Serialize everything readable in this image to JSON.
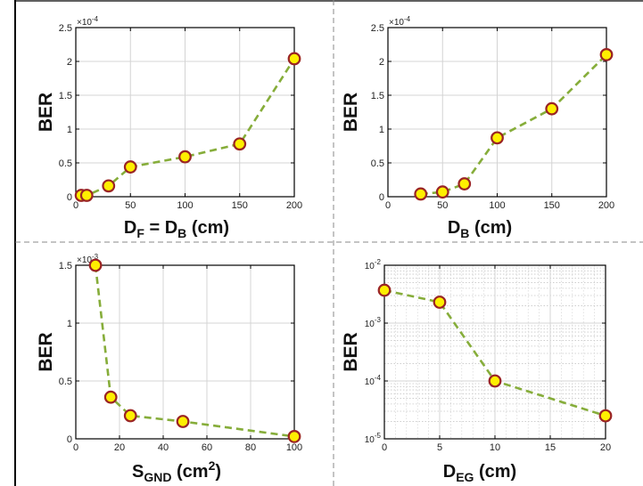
{
  "style": {
    "line_color": "#86ad3a",
    "marker_fill": "#ffef00",
    "marker_edge": "#9a2424",
    "grid_color": "#d4d4d4",
    "divider_color": "#888888"
  },
  "chart_data": [
    {
      "type": "line",
      "ylabel": "BER",
      "xlabel": {
        "main": "D",
        "sub": "F",
        "mid": " = D",
        "sub2": "B",
        "tail": " (cm)"
      },
      "exponent": {
        "base": "×10",
        "power": "-4"
      },
      "x": [
        5,
        10,
        30,
        50,
        100,
        150,
        200
      ],
      "y": [
        0.02,
        0.02,
        0.16,
        0.44,
        0.59,
        0.78,
        2.04
      ],
      "xlim": [
        0,
        200
      ],
      "ylim": [
        0,
        2.5
      ],
      "xticks": [
        0,
        50,
        100,
        150,
        200
      ],
      "yticks": [
        0,
        0.5,
        1,
        1.5,
        2,
        2.5
      ],
      "xticklabels": [
        "0",
        "50",
        "100",
        "150",
        "200"
      ],
      "yticklabels": [
        "0",
        "0.5",
        "1",
        "1.5",
        "2",
        "2.5"
      ],
      "yscale": "linear",
      "grid": true
    },
    {
      "type": "line",
      "ylabel": "BER",
      "xlabel": {
        "main": "D",
        "sub": "B",
        "tail": " (cm)"
      },
      "exponent": {
        "base": "×10",
        "power": "-4"
      },
      "x": [
        30,
        50,
        70,
        100,
        150,
        200
      ],
      "y": [
        0.04,
        0.07,
        0.19,
        0.87,
        1.3,
        2.1
      ],
      "xlim": [
        0,
        200
      ],
      "ylim": [
        0,
        2.5
      ],
      "xticks": [
        0,
        50,
        100,
        150,
        200
      ],
      "yticks": [
        0,
        0.5,
        1,
        1.5,
        2,
        2.5
      ],
      "xticklabels": [
        "0",
        "50",
        "100",
        "150",
        "200"
      ],
      "yticklabels": [
        "0",
        "0.5",
        "1",
        "1.5",
        "2",
        "2.5"
      ],
      "yscale": "linear",
      "grid": true
    },
    {
      "type": "line",
      "ylabel": "BER",
      "xlabel": {
        "main": "S",
        "sub": "GND",
        "tail": " (cm",
        "sup": "2",
        "tail2": ")"
      },
      "exponent": {
        "base": "×10",
        "power": "-3"
      },
      "x": [
        9,
        16,
        25,
        49,
        100
      ],
      "y": [
        1.5,
        0.36,
        0.2,
        0.15,
        0.02
      ],
      "xlim": [
        0,
        100
      ],
      "ylim": [
        0,
        1.5
      ],
      "xticks": [
        0,
        20,
        40,
        60,
        80,
        100
      ],
      "yticks": [
        0,
        0.5,
        1,
        1.5
      ],
      "xticklabels": [
        "0",
        "20",
        "40",
        "60",
        "80",
        "100"
      ],
      "yticklabels": [
        "0",
        "0.5",
        "1",
        "1.5"
      ],
      "yscale": "linear",
      "grid": true
    },
    {
      "type": "line",
      "ylabel": "BER",
      "xlabel": {
        "main": "D",
        "sub": "EG",
        "tail": " (cm)"
      },
      "x": [
        0,
        5,
        10,
        20
      ],
      "y": [
        0.0037,
        0.0023,
        0.0001,
        2.5e-05
      ],
      "xlim": [
        0,
        20
      ],
      "ylim": [
        1e-05,
        0.01
      ],
      "xticks": [
        0,
        5,
        10,
        15,
        20
      ],
      "xticklabels": [
        "0",
        "5",
        "10",
        "15",
        "20"
      ],
      "yticks": [
        1e-05,
        0.0001,
        0.001,
        0.01
      ],
      "yticklabels": [
        {
          "base": "10",
          "exp": "-5"
        },
        {
          "base": "10",
          "exp": "-4"
        },
        {
          "base": "10",
          "exp": "-3"
        },
        {
          "base": "10",
          "exp": "-2"
        }
      ],
      "yscale": "log",
      "grid": true
    }
  ]
}
